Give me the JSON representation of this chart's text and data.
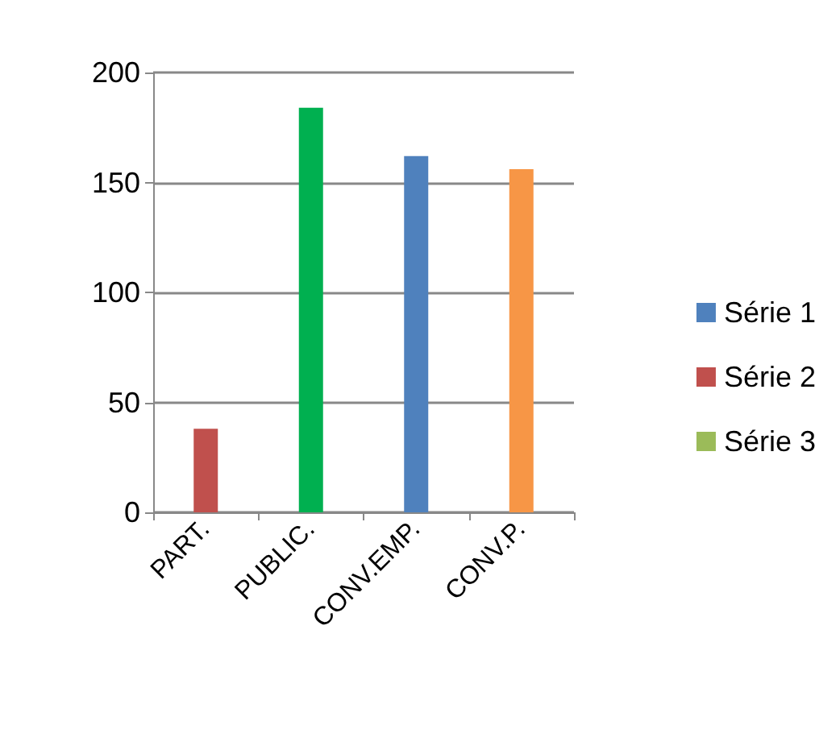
{
  "chart_data": {
    "type": "bar",
    "categories": [
      "PART.",
      "PUBLIC.",
      "CONV.EMP.",
      "CONV.P."
    ],
    "stacked": true,
    "series": [
      {
        "name": "Série 1",
        "color": "#4f81bd",
        "values": [
          null,
          null,
          162,
          null
        ]
      },
      {
        "name": "Série 2",
        "color": "#c0504d",
        "values": [
          38,
          null,
          null,
          null
        ]
      },
      {
        "name": "Série 3",
        "color": "#9bbb59",
        "values": [
          null,
          null,
          null,
          null
        ]
      },
      {
        "color": "#00b050",
        "values": [
          null,
          184,
          null,
          null
        ]
      },
      {
        "color": "#f79646",
        "values": [
          null,
          null,
          null,
          156
        ]
      }
    ],
    "ylim": [
      0,
      200
    ],
    "yticks": [
      0,
      50,
      100,
      150,
      200
    ],
    "grid": "y",
    "legend": "right"
  }
}
